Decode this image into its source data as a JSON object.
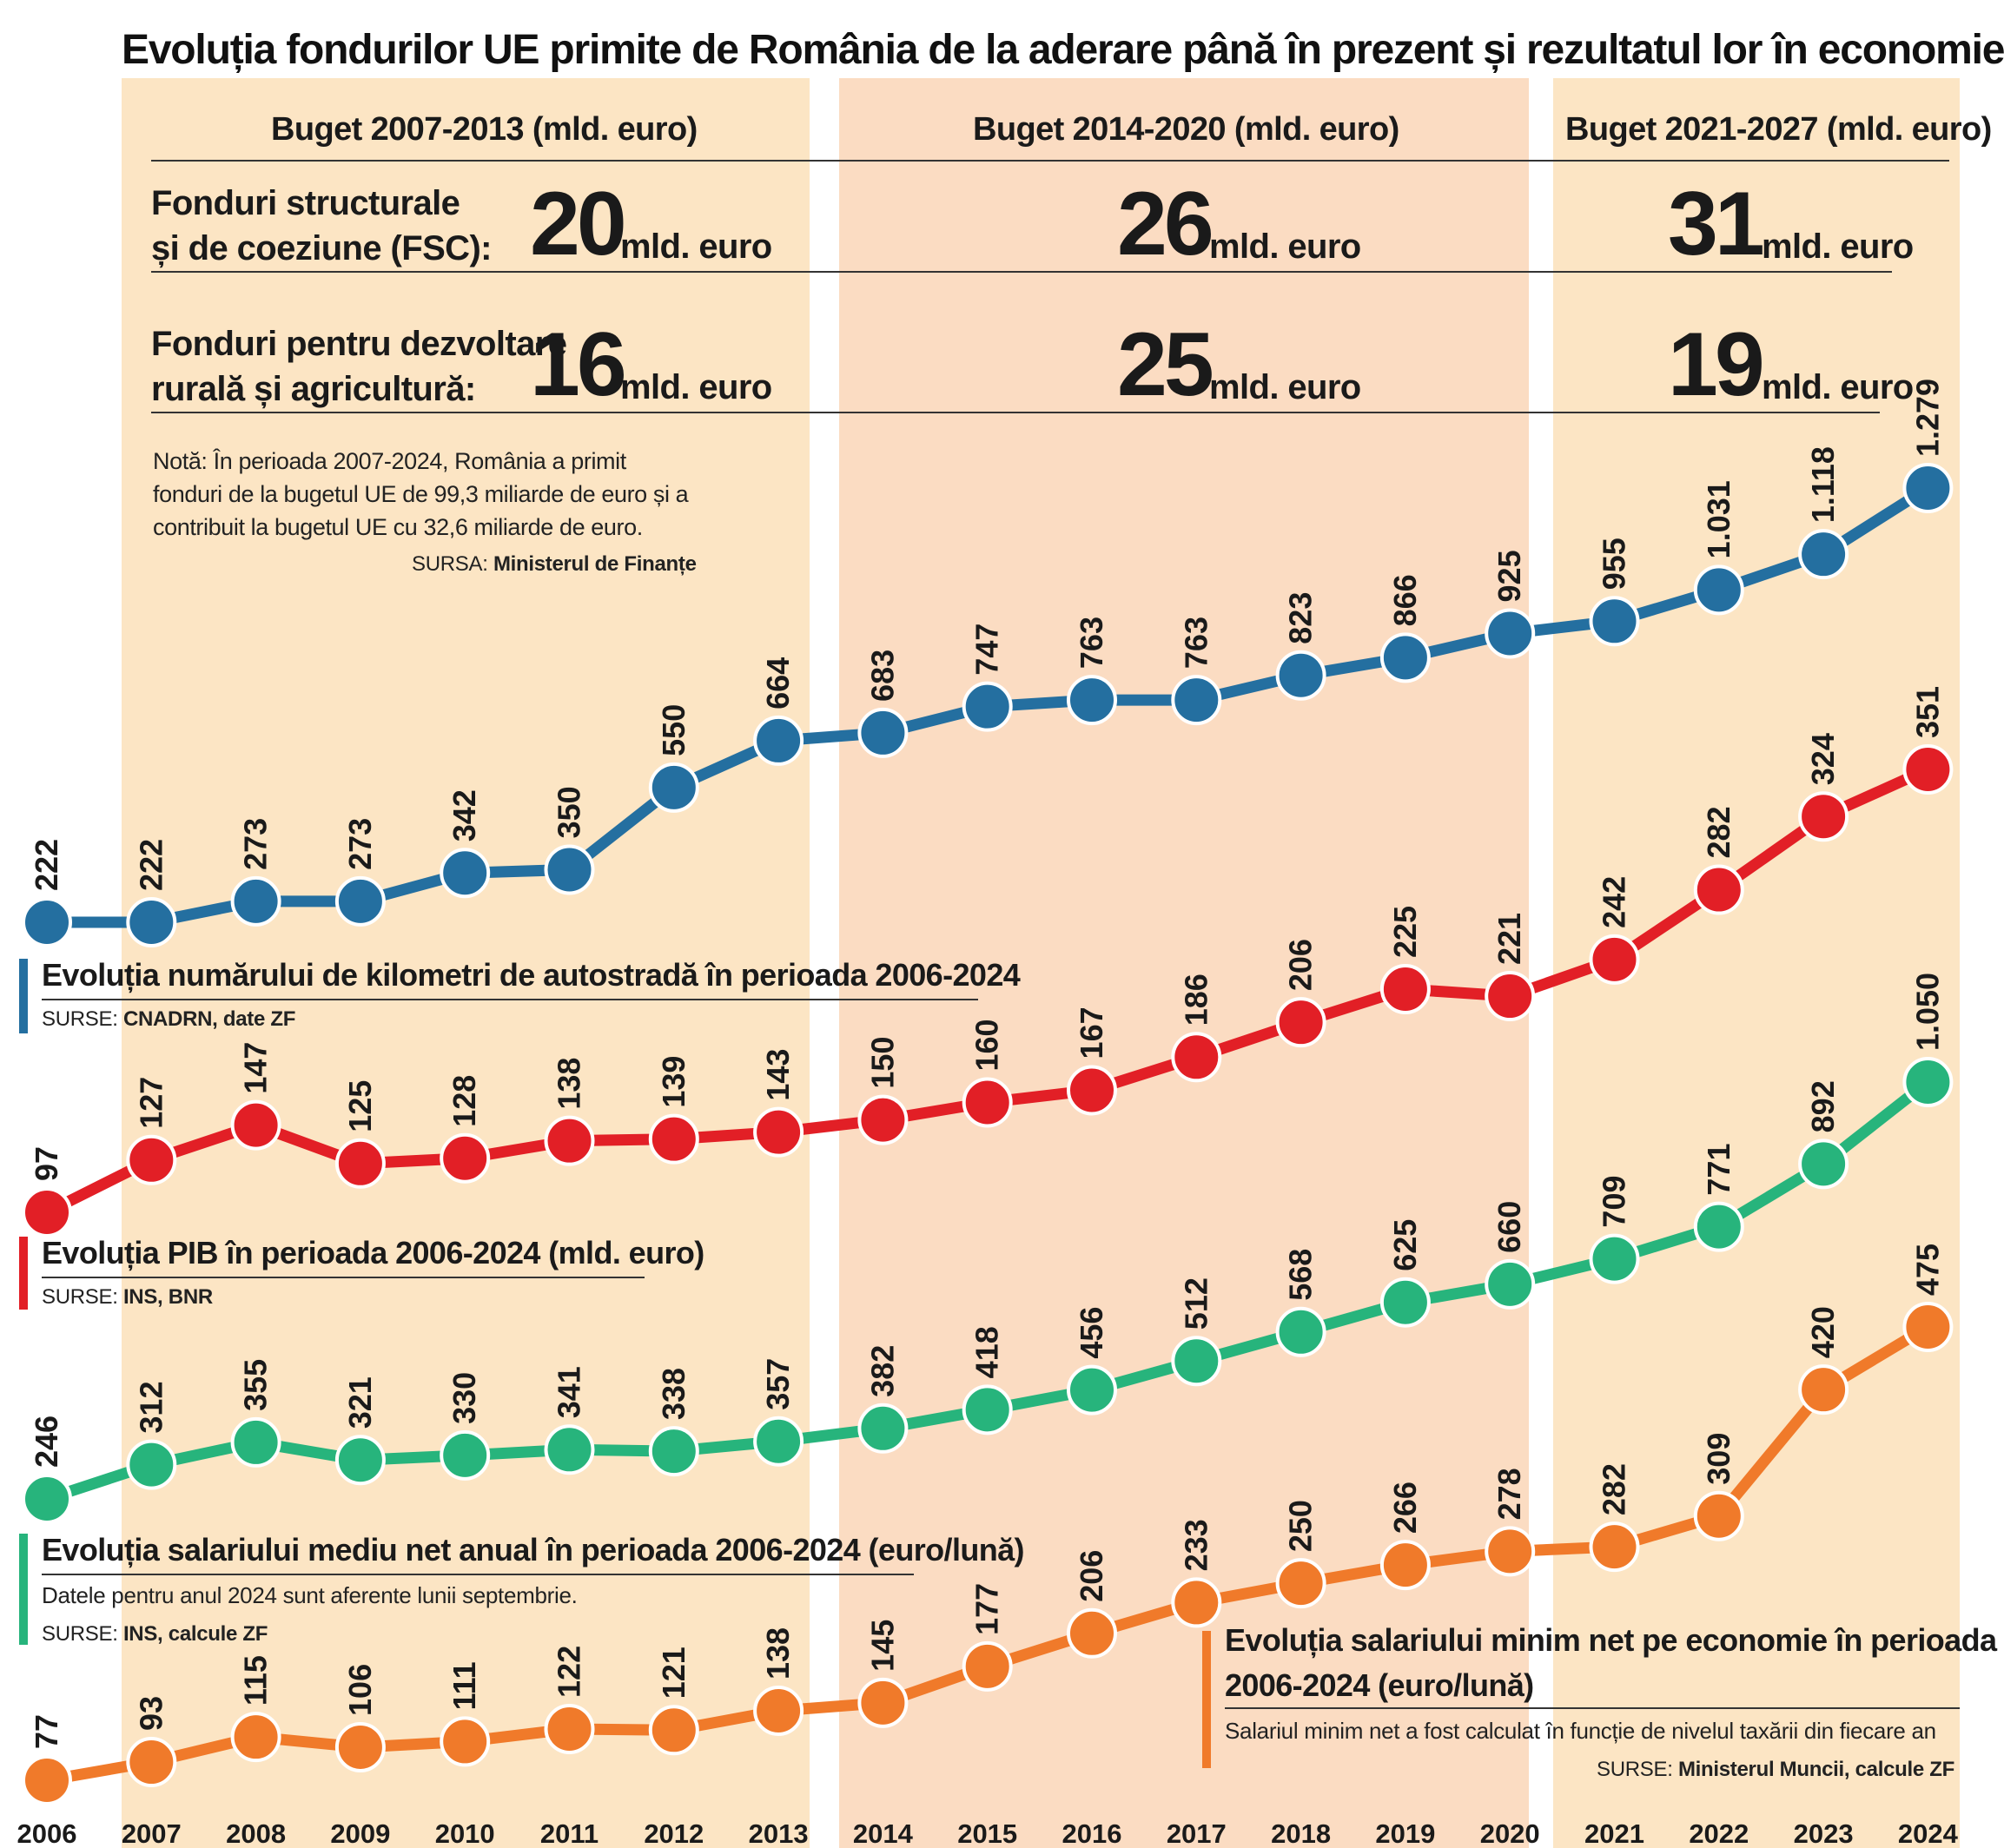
{
  "title": "Evoluția fondurilor UE primite de România de la aderare până în prezent și rezultatul lor în economie",
  "budget": {
    "periods": [
      {
        "header": "Buget 2007-2013 (mld. euro)",
        "fsc": "20",
        "rural": "16"
      },
      {
        "header": "Buget 2014-2020 (mld. euro)",
        "fsc": "26",
        "rural": "25"
      },
      {
        "header": "Buget 2021-2027 (mld. euro)",
        "fsc": "31",
        "rural": "19"
      }
    ],
    "unit": "mld. euro",
    "fsc_label_1": "Fonduri structurale",
    "fsc_label_2": "și de coeziune (FSC):",
    "rural_label_1": "Fonduri pentru dezvoltare",
    "rural_label_2": "rurală și agricultură:"
  },
  "note": {
    "line1": "Notă: În perioada 2007-2024, România a primit",
    "line2": "fonduri de la bugetul UE de 99,3 miliarde de euro și a",
    "line3": "contribuit la bugetul UE cu 32,6 miliarde de euro.",
    "source_prefix": "SURSA: ",
    "source_name": "Ministerul de Finanțe"
  },
  "chart_data": {
    "type": "line",
    "x": [
      "2006",
      "2007",
      "2008",
      "2009",
      "2010",
      "2011",
      "2012",
      "2013",
      "2014",
      "2015",
      "2016",
      "2017",
      "2018",
      "2019",
      "2020",
      "2021",
      "2022",
      "2023",
      "2024"
    ],
    "series": [
      {
        "title": "Evoluția numărului de kilometri de autostradă în perioada 2006-2024",
        "color": "#246fa0",
        "values": [
          222,
          222,
          273,
          273,
          342,
          350,
          550,
          664,
          683,
          747,
          763,
          763,
          823,
          866,
          925,
          955,
          1031,
          1118,
          1279
        ],
        "labels": [
          "222",
          "222",
          "273",
          "273",
          "342",
          "350",
          "550",
          "664",
          "683",
          "747",
          "763",
          "763",
          "823",
          "866",
          "925",
          "955",
          "1.031",
          "1.118",
          "1.279"
        ],
        "source_prefix": "SURSE: ",
        "source_name": "CNADRN, date ZF",
        "note": ""
      },
      {
        "title": "Evoluția PIB în perioada 2006-2024 (mld. euro)",
        "color": "#e21f26",
        "values": [
          97,
          127,
          147,
          125,
          128,
          138,
          139,
          143,
          150,
          160,
          167,
          186,
          206,
          225,
          221,
          242,
          282,
          324,
          351
        ],
        "labels": [
          "97",
          "127",
          "147",
          "125",
          "128",
          "138",
          "139",
          "143",
          "150",
          "160",
          "167",
          "186",
          "206",
          "225",
          "221",
          "242",
          "282",
          "324",
          "351"
        ],
        "source_prefix": "SURSE: ",
        "source_name": "INS, BNR",
        "note": ""
      },
      {
        "title": "Evoluția salariului mediu net anual în perioada 2006-2024 (euro/lună)",
        "color": "#27b47c",
        "values": [
          246,
          312,
          355,
          321,
          330,
          341,
          338,
          357,
          382,
          418,
          456,
          512,
          568,
          625,
          660,
          709,
          771,
          892,
          1050
        ],
        "labels": [
          "246",
          "312",
          "355",
          "321",
          "330",
          "341",
          "338",
          "357",
          "382",
          "418",
          "456",
          "512",
          "568",
          "625",
          "660",
          "709",
          "771",
          "892",
          "1.050"
        ],
        "source_prefix": "SURSE: ",
        "source_name": "INS, calcule ZF",
        "note": "Datele pentru anul 2024 sunt aferente lunii septembrie."
      },
      {
        "title_1": "Evoluția salariului minim net pe economie în perioada",
        "title_2": "2006-2024 (euro/lună)",
        "color": "#f07a2a",
        "values": [
          77,
          93,
          115,
          106,
          111,
          122,
          121,
          138,
          145,
          177,
          206,
          233,
          250,
          266,
          278,
          282,
          309,
          420,
          475
        ],
        "labels": [
          "77",
          "93",
          "115",
          "106",
          "111",
          "122",
          "121",
          "138",
          "145",
          "177",
          "206",
          "233",
          "250",
          "266",
          "278",
          "282",
          "309",
          "420",
          "475"
        ],
        "source_prefix": "SURSE: ",
        "source_name": "Ministerul Muncii, calcule ZF",
        "note": "Salariul minim net a fost calculat în funcție de nivelul taxării din fiecare an"
      }
    ]
  }
}
